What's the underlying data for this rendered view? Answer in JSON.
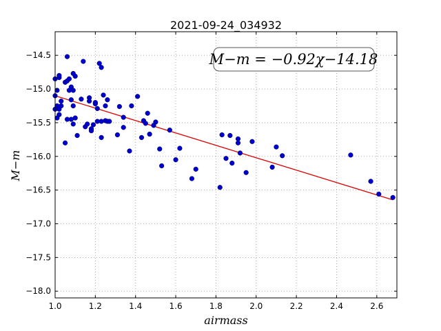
{
  "chart_data": {
    "type": "scatter",
    "title": "2021-09-24_034932",
    "xlabel": "airmass",
    "ylabel": "M−m",
    "xlim": [
      1.0,
      2.7
    ],
    "ylim": [
      -18.1,
      -14.15
    ],
    "grid": true,
    "x_ticks": [
      1.0,
      1.2,
      1.4,
      1.6,
      1.8,
      2.0,
      2.2,
      2.4,
      2.6
    ],
    "x_tick_labels": [
      "1.0",
      "1.2",
      "1.4",
      "1.6",
      "1.8",
      "2.0",
      "2.2",
      "2.4",
      "2.6"
    ],
    "y_ticks": [
      -14.5,
      -15.0,
      -15.5,
      -16.0,
      -16.5,
      -17.0,
      -17.5,
      -18.0
    ],
    "y_tick_labels": [
      "−14.5",
      "−15.0",
      "−15.5",
      "−16.0",
      "−16.5",
      "−17.0",
      "−17.5",
      "−18.0"
    ],
    "annotation": "M−m = −0.92χ−14.18",
    "fit": {
      "slope": -0.92,
      "intercept": -14.18,
      "x_range": [
        1.0,
        2.68
      ]
    },
    "colors": {
      "points": "#0000cc",
      "fit_line": "#dd0000",
      "grid": "#9a9a9a"
    },
    "series": [
      {
        "x": [
          1.0,
          1.0,
          1.0,
          1.01,
          1.01,
          1.01,
          1.02,
          1.02,
          1.02,
          1.02,
          1.03,
          1.03,
          1.05,
          1.05,
          1.06,
          1.06,
          1.06,
          1.07,
          1.07,
          1.08,
          1.08,
          1.08,
          1.09,
          1.09,
          1.09,
          1.09,
          1.1,
          1.1,
          1.11,
          1.13,
          1.14,
          1.15,
          1.16,
          1.17,
          1.17,
          1.18,
          1.18,
          1.19,
          1.2,
          1.2,
          1.21,
          1.21,
          1.22,
          1.23,
          1.23,
          1.23,
          1.24,
          1.25,
          1.25,
          1.26,
          1.26,
          1.27,
          1.31,
          1.32,
          1.34,
          1.34,
          1.37,
          1.38,
          1.41,
          1.43,
          1.44,
          1.45,
          1.46,
          1.47,
          1.49,
          1.5,
          1.52,
          1.53,
          1.57,
          1.6,
          1.62,
          1.68,
          1.7,
          1.82,
          1.83,
          1.85,
          1.87,
          1.88,
          1.91,
          1.91,
          1.92,
          1.95,
          1.98,
          2.08,
          2.1,
          2.13,
          2.47,
          2.57,
          2.61,
          2.68
        ],
        "y": [
          -14.85,
          -15.1,
          -15.3,
          -15.02,
          -15.25,
          -15.43,
          -14.83,
          -15.3,
          -15.38,
          -14.8,
          -15.18,
          -15.25,
          -15.8,
          -14.9,
          -14.52,
          -15.45,
          -14.88,
          -14.85,
          -15.02,
          -15.16,
          -15.45,
          -14.97,
          -14.77,
          -15.25,
          -15.02,
          -15.52,
          -14.81,
          -15.43,
          -15.69,
          -15.15,
          -14.59,
          -15.56,
          -15.52,
          -15.13,
          -15.18,
          -15.59,
          -15.62,
          -15.53,
          -15.22,
          -15.2,
          -15.29,
          -15.48,
          -14.62,
          -14.68,
          -15.72,
          -15.48,
          -15.09,
          -15.47,
          -15.25,
          -15.16,
          -15.48,
          -15.48,
          -15.68,
          -15.26,
          -15.57,
          -15.42,
          -15.92,
          -15.25,
          -15.11,
          -15.72,
          -15.47,
          -15.51,
          -15.36,
          -15.67,
          -15.54,
          -15.49,
          -15.89,
          -16.14,
          -15.61,
          -16.05,
          -15.88,
          -16.33,
          -16.19,
          -16.46,
          -15.68,
          -16.03,
          -15.69,
          -16.1,
          -15.74,
          -15.8,
          -15.95,
          -16.24,
          -15.78,
          -16.16,
          -15.86,
          -15.99,
          -15.98,
          -16.37,
          -16.56,
          -16.61
        ]
      }
    ]
  }
}
